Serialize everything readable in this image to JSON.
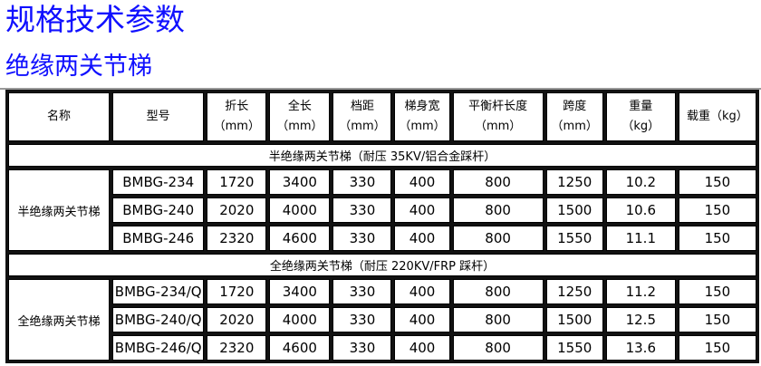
{
  "title": "规格技术参数",
  "subtitle": "绝缘两关节梯",
  "colors": {
    "title": "#1010ff"
  },
  "table": {
    "headers": [
      {
        "line1": "名称",
        "line2": ""
      },
      {
        "line1": "型号",
        "line2": ""
      },
      {
        "line1": "折长",
        "line2": "（mm）"
      },
      {
        "line1": "全长",
        "line2": "（mm）"
      },
      {
        "line1": "档距",
        "line2": "（mm）"
      },
      {
        "line1": "梯身宽",
        "line2": "（mm）"
      },
      {
        "line1": "平衡杆长度",
        "line2": "（mm）"
      },
      {
        "line1": "跨度",
        "line2": "（mm）"
      },
      {
        "line1": "重量",
        "line2": "（kg）"
      },
      {
        "line1": "载重（kg）",
        "line2": ""
      }
    ],
    "groups": [
      {
        "section": "半绝缘两关节梯（耐压 35KV/铝合金踩杆）",
        "name": "半绝缘两关节梯",
        "rows": [
          [
            "BMBG-234",
            "1720",
            "3400",
            "330",
            "400",
            "800",
            "1250",
            "10.2",
            "150"
          ],
          [
            "BMBG-240",
            "2020",
            "4000",
            "330",
            "400",
            "800",
            "1500",
            "10.6",
            "150"
          ],
          [
            "BMBG-246",
            "2320",
            "4600",
            "330",
            "400",
            "800",
            "1550",
            "11.1",
            "150"
          ]
        ]
      },
      {
        "section": "全绝缘两关节梯（耐压 220KV/FRP 踩杆）",
        "name": "全绝缘两关节梯",
        "rows": [
          [
            "BMBG-234/Q",
            "1720",
            "3400",
            "330",
            "400",
            "800",
            "1250",
            "11.2",
            "150"
          ],
          [
            "BMBG-240/Q",
            "2020",
            "4000",
            "330",
            "400",
            "800",
            "1500",
            "12.5",
            "150"
          ],
          [
            "BMBG-246/Q",
            "2320",
            "4600",
            "330",
            "400",
            "800",
            "1550",
            "13.6",
            "150"
          ]
        ]
      }
    ]
  }
}
